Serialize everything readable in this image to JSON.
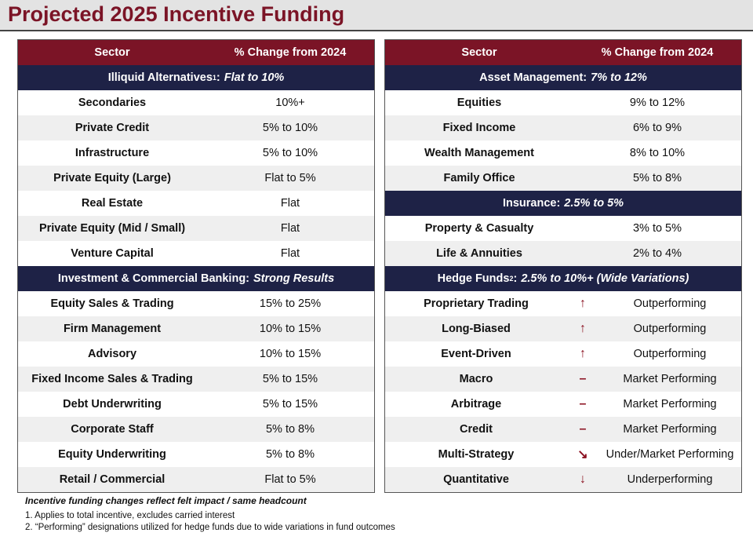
{
  "title": "Projected 2025 Incentive Funding",
  "tables": [
    {
      "header": [
        "Sector",
        "% Change from 2024"
      ],
      "groups": [
        {
          "heading": {
            "name": "Illiquid Alternatives",
            "sup": "1",
            "after": ":",
            "emph": "Flat to 10%"
          },
          "rows": [
            [
              "Secondaries",
              "10%+"
            ],
            [
              "Private Credit",
              "5% to 10%"
            ],
            [
              "Infrastructure",
              "5% to 10%"
            ],
            [
              "Private Equity (Large)",
              "Flat to 5%"
            ],
            [
              "Real Estate",
              "Flat"
            ],
            [
              "Private Equity (Mid / Small)",
              "Flat"
            ],
            [
              "Venture Capital",
              "Flat"
            ]
          ]
        },
        {
          "heading": {
            "name": "Investment & Commercial Banking:",
            "emph": "Strong Results"
          },
          "rows": [
            [
              "Equity Sales & Trading",
              "15% to 25%"
            ],
            [
              "Firm Management",
              "10% to 15%"
            ],
            [
              "Advisory",
              "10% to 15%"
            ],
            [
              "Fixed Income Sales & Trading",
              "5% to 15%"
            ],
            [
              "Debt Underwriting",
              "5% to 15%"
            ],
            [
              "Corporate Staff",
              "5% to 8%"
            ],
            [
              "Equity Underwriting",
              "5% to 8%"
            ],
            [
              "Retail / Commercial",
              "Flat to 5%"
            ]
          ]
        }
      ]
    },
    {
      "header": [
        "Sector",
        "% Change from 2024"
      ],
      "groups": [
        {
          "heading": {
            "name": "Asset Management:",
            "emph": "7% to 12%"
          },
          "rows": [
            [
              "Equities",
              "9% to 12%"
            ],
            [
              "Fixed Income",
              "6% to 9%"
            ],
            [
              "Wealth Management",
              "8% to 10%"
            ],
            [
              "Family Office",
              "5% to 8%"
            ]
          ]
        },
        {
          "heading": {
            "name": "Insurance:",
            "emph": "2.5% to 5%"
          },
          "rows": [
            [
              "Property & Casualty",
              "3% to 5%"
            ],
            [
              "Life & Annuities",
              "2% to 4%"
            ]
          ]
        },
        {
          "heading": {
            "name": "Hedge Funds",
            "sup": "2",
            "after": ":",
            "emph": "2.5% to 10%+ (Wide Variations)"
          },
          "rows": [
            [
              "Proprietary Trading",
              "↑",
              "Outperforming"
            ],
            [
              "Long-Biased",
              "↑",
              "Outperforming"
            ],
            [
              "Event-Driven",
              "↑",
              "Outperforming"
            ],
            [
              "Macro",
              "–",
              "Market Performing"
            ],
            [
              "Arbitrage",
              "–",
              "Market Performing"
            ],
            [
              "Credit",
              "–",
              "Market Performing"
            ],
            [
              "Multi-Strategy",
              "↘",
              "Under/Market Performing"
            ],
            [
              "Quantitative",
              "↓",
              "Underperforming"
            ]
          ]
        }
      ]
    }
  ],
  "footer": {
    "lead": "Incentive funding changes reflect felt impact / same headcount",
    "notes": [
      "1. Applies to total incentive, excludes carried interest",
      "2. “Performing” designations utilized for hedge funds due to wide variations in fund outcomes"
    ]
  }
}
